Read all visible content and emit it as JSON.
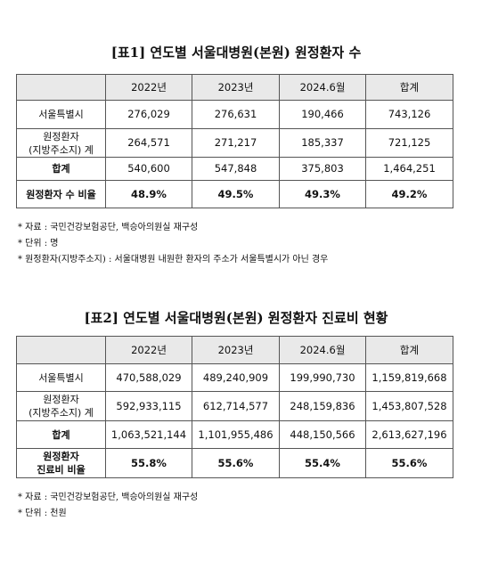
{
  "tables": [
    {
      "title": "[표1] 연도별 서울대병원(본원) 원정환자 수",
      "header": [
        "2022년",
        "2023년",
        "2024.6월",
        "합계"
      ],
      "rows": [
        [
          [
            "서울특별시"
          ],
          "276,029",
          "276,631",
          "190,466",
          "743,126"
        ],
        [
          [
            "원정환자",
            "(지방주소지) 계"
          ],
          "264,571",
          "271,217",
          "185,337",
          "721,125"
        ],
        [
          [
            "합계"
          ],
          "540,600",
          "547,848",
          "375,803",
          "1,464,251"
        ],
        [
          [
            "원정환자 수 비율"
          ],
          "48.9%",
          "49.5%",
          "49.3%",
          "49.2%"
        ]
      ],
      "notes": [
        "*  자료 : 국민건강보험공단, 백승아의원실 재구성",
        "*  단위 : 명",
        "*  원정환자(지방주소지) : 서울대병원 내원한 환자의 주소가 서울특별시가 아닌 경우"
      ]
    },
    {
      "title": "[표2] 연도별 서울대병원(본원) 원정환자 진료비 현황",
      "header": [
        "2022년",
        "2023년",
        "2024.6월",
        "합계"
      ],
      "rows": [
        [
          [
            "서울특별시"
          ],
          "470,588,029",
          "489,240,909",
          "199,990,730",
          "1,159,819,668"
        ],
        [
          [
            "원정환자",
            "(지방주소지) 계"
          ],
          "592,933,115",
          "612,714,577",
          "248,159,836",
          "1,453,807,528"
        ],
        [
          [
            "합계"
          ],
          "1,063,521,144",
          "1,101,955,486",
          "448,150,566",
          "2,613,627,196"
        ],
        [
          [
            "원정환자",
            "진료비 비율"
          ],
          "55.8%",
          "55.6%",
          "55.4%",
          "55.6%"
        ]
      ],
      "notes": [
        "*  자료 : 국민건강보험공단, 백승아의원실 재구성",
        "*  단위 : 천원"
      ]
    }
  ]
}
